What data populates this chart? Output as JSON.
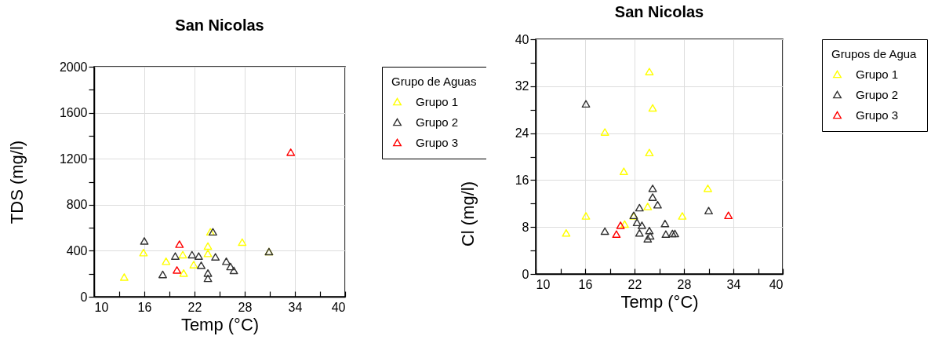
{
  "chart_data": [
    {
      "type": "scatter",
      "title": "San Nicolas",
      "xlabel": "Temp (°C)",
      "ylabel": "TDS (mg/l)",
      "legend_title": "Grupo de Aguas",
      "legend": "right",
      "grid": true,
      "marker": "triangle",
      "xlim": [
        10,
        40
      ],
      "xticks": [
        10,
        {
          "value": 13,
          "label": null
        },
        16,
        {
          "value": 19,
          "label": null
        },
        22,
        {
          "value": 25,
          "label": null
        },
        28,
        {
          "value": 31,
          "label": null
        },
        34,
        {
          "value": 37,
          "label": null
        },
        40
      ],
      "ylim": [
        0,
        2000
      ],
      "yticks": [
        0,
        {
          "value": 200,
          "label": null
        },
        400,
        {
          "value": 600,
          "label": null
        },
        800,
        {
          "value": 1000,
          "label": null
        },
        1200,
        {
          "value": 1400,
          "label": null
        },
        1600,
        {
          "value": 1800,
          "label": null
        },
        2000
      ],
      "series": [
        {
          "name": "Grupo 1",
          "color": "#ffff00",
          "x": [
            13.6,
            15.9,
            18.6,
            20.6,
            20.7,
            21.9,
            23.6,
            23.6,
            27.7,
            23.9,
            30.9
          ],
          "values": [
            171,
            384,
            309,
            366,
            206,
            279,
            441,
            377,
            475,
            565,
            393
          ]
        },
        {
          "name": "Grupo 2",
          "color": "#333333",
          "x": [
            16.0,
            18.2,
            19.7,
            21.7,
            22.5,
            22.8,
            23.6,
            23.6,
            24.2,
            24.5,
            25.8,
            26.3,
            26.7,
            30.9
          ],
          "values": [
            485,
            194,
            354,
            366,
            354,
            274,
            206,
            160,
            565,
            347,
            309,
            263,
            229,
            393
          ]
        },
        {
          "name": "Grupo 3",
          "color": "#ff0000",
          "x": [
            20.2,
            19.9,
            33.5
          ],
          "values": [
            457,
            233,
            1257
          ]
        }
      ]
    },
    {
      "type": "scatter",
      "title": "San Nicolas",
      "xlabel": "Temp (°C)",
      "ylabel": "Cl (mg/l)",
      "legend_title": "Grupos de Agua",
      "legend": "right",
      "grid": true,
      "marker": "triangle",
      "xlim": [
        10,
        40
      ],
      "xticks": [
        10,
        {
          "value": 13,
          "label": null
        },
        16,
        {
          "value": 19,
          "label": null
        },
        22,
        {
          "value": 25,
          "label": null
        },
        28,
        {
          "value": 31,
          "label": null
        },
        34,
        {
          "value": 37,
          "label": null
        },
        40
      ],
      "ylim": [
        0,
        40
      ],
      "yticks": [
        0,
        {
          "value": 4,
          "label": null
        },
        8,
        {
          "value": 12,
          "label": null
        },
        16,
        {
          "value": 20,
          "label": null
        },
        24,
        {
          "value": 28,
          "label": null
        },
        32,
        {
          "value": 36,
          "label": null
        },
        40
      ],
      "series": [
        {
          "name": "Grupo 1",
          "color": "#ffff00",
          "x": [
            23.8,
            24.2,
            18.4,
            23.8,
            20.7,
            30.9,
            16.1,
            13.7,
            23.6,
            27.8,
            21.9,
            20.8
          ],
          "values": [
            34.5,
            28.3,
            24.2,
            20.7,
            17.5,
            14.6,
            9.9,
            7.0,
            11.5,
            9.9,
            9.9,
            8.5
          ]
        },
        {
          "name": "Grupo 2",
          "color": "#333333",
          "x": [
            16.1,
            24.2,
            24.2,
            24.8,
            22.6,
            21.9,
            22.3,
            22.9,
            18.4,
            23.8,
            22.6,
            23.9,
            23.6,
            25.7,
            25.8,
            26.6,
            26.9,
            31.0
          ],
          "values": [
            29.0,
            14.6,
            13.1,
            11.8,
            11.3,
            10.0,
            8.8,
            8.3,
            7.3,
            7.4,
            7.0,
            6.5,
            6.0,
            8.6,
            6.8,
            6.9,
            6.9,
            10.8
          ]
        },
        {
          "name": "Grupo 3",
          "color": "#ff0000",
          "x": [
            20.3,
            19.8,
            33.4
          ],
          "values": [
            8.3,
            6.8,
            10.0
          ]
        }
      ]
    }
  ]
}
